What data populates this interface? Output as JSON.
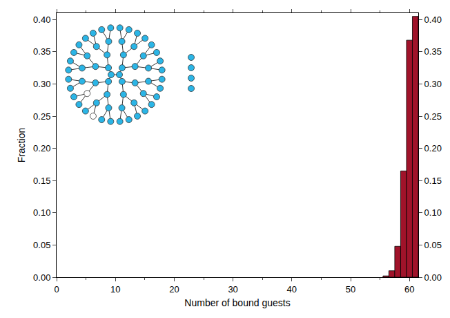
{
  "chart_data": {
    "type": "bar",
    "x": [
      56,
      57,
      58,
      59,
      60,
      61
    ],
    "values": [
      0.002,
      0.01,
      0.048,
      0.165,
      0.368,
      0.405
    ],
    "color": "#a0132a",
    "xlabel": "Number of bound guests",
    "ylabel": "Fraction",
    "xlim": [
      0,
      61.5
    ],
    "xticks": [
      0,
      10,
      20,
      30,
      40,
      50,
      60
    ],
    "ylim": [
      0,
      0.41
    ],
    "yticks": [
      {
        "value": 0,
        "label": "0.00"
      },
      {
        "value": 0.05,
        "label": "0.05"
      },
      {
        "value": 0.1,
        "label": "0.10"
      },
      {
        "value": 0.15,
        "label": "0.15"
      },
      {
        "value": 0.2,
        "label": "0.20"
      },
      {
        "value": 0.25,
        "label": "0.25"
      },
      {
        "value": 0.3,
        "label": "0.30"
      },
      {
        "value": 0.35,
        "label": "0.35"
      },
      {
        "value": 0.4,
        "label": "0.40"
      }
    ],
    "y2lim": [
      0,
      0.41
    ],
    "y2ticks": [
      {
        "value": 0,
        "label": "0.00"
      },
      {
        "value": 0.05,
        "label": "0.05"
      },
      {
        "value": 0.1,
        "label": "0.10"
      },
      {
        "value": 0.15,
        "label": "0.15"
      },
      {
        "value": 0.2,
        "label": "0.20"
      },
      {
        "value": 0.25,
        "label": "0.25"
      },
      {
        "value": 0.3,
        "label": "0.30"
      },
      {
        "value": 0.35,
        "label": "0.35"
      },
      {
        "value": 0.4,
        "label": "0.40"
      }
    ],
    "grid": false
  }
}
